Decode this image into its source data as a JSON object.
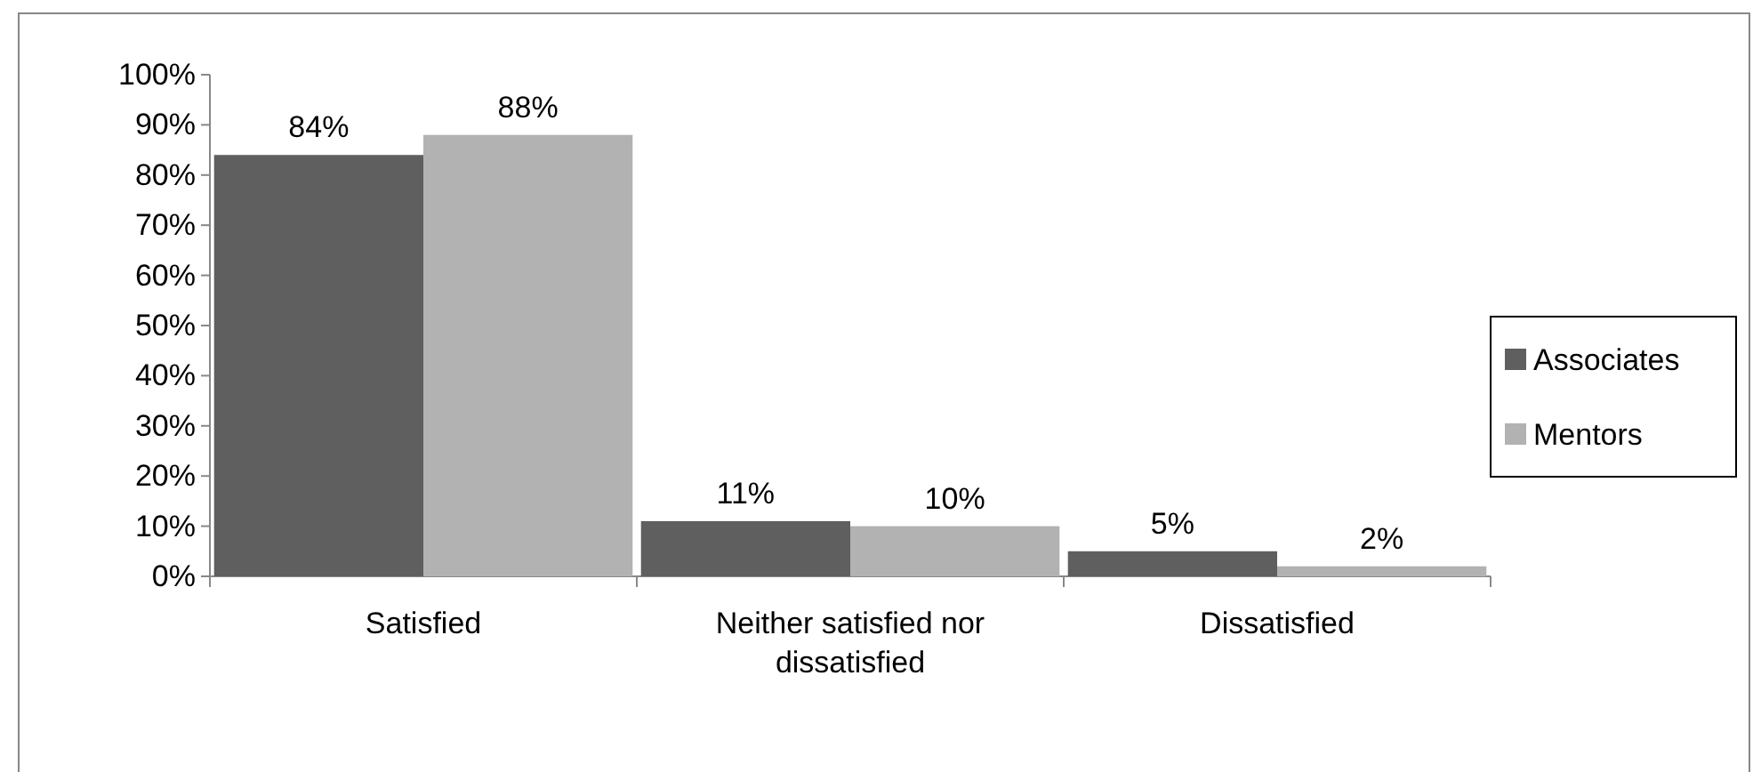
{
  "chart_data": {
    "type": "bar",
    "categories": [
      "Satisfied",
      "Neither satisfied nor dissatisfied",
      "Dissatisfied"
    ],
    "series": [
      {
        "name": "Associates",
        "color": "#5f5f5f",
        "values": [
          84,
          11,
          5
        ],
        "value_labels": [
          "84%",
          "11%",
          "5%"
        ]
      },
      {
        "name": "Mentors",
        "color": "#b2b2b2",
        "values": [
          88,
          10,
          2
        ],
        "value_labels": [
          "88%",
          "10%",
          "2%"
        ]
      }
    ],
    "ylim": [
      0,
      100
    ],
    "yticks": [
      {
        "value": 0,
        "label": "0%"
      },
      {
        "value": 10,
        "label": "10%"
      },
      {
        "value": 20,
        "label": "20%"
      },
      {
        "value": 30,
        "label": "30%"
      },
      {
        "value": 40,
        "label": "40%"
      },
      {
        "value": 50,
        "label": "50%"
      },
      {
        "value": 60,
        "label": "60%"
      },
      {
        "value": 70,
        "label": "70%"
      },
      {
        "value": 80,
        "label": "80%"
      },
      {
        "value": 90,
        "label": "90%"
      },
      {
        "value": 100,
        "label": "100%"
      }
    ],
    "legend": "right",
    "grid": false
  }
}
